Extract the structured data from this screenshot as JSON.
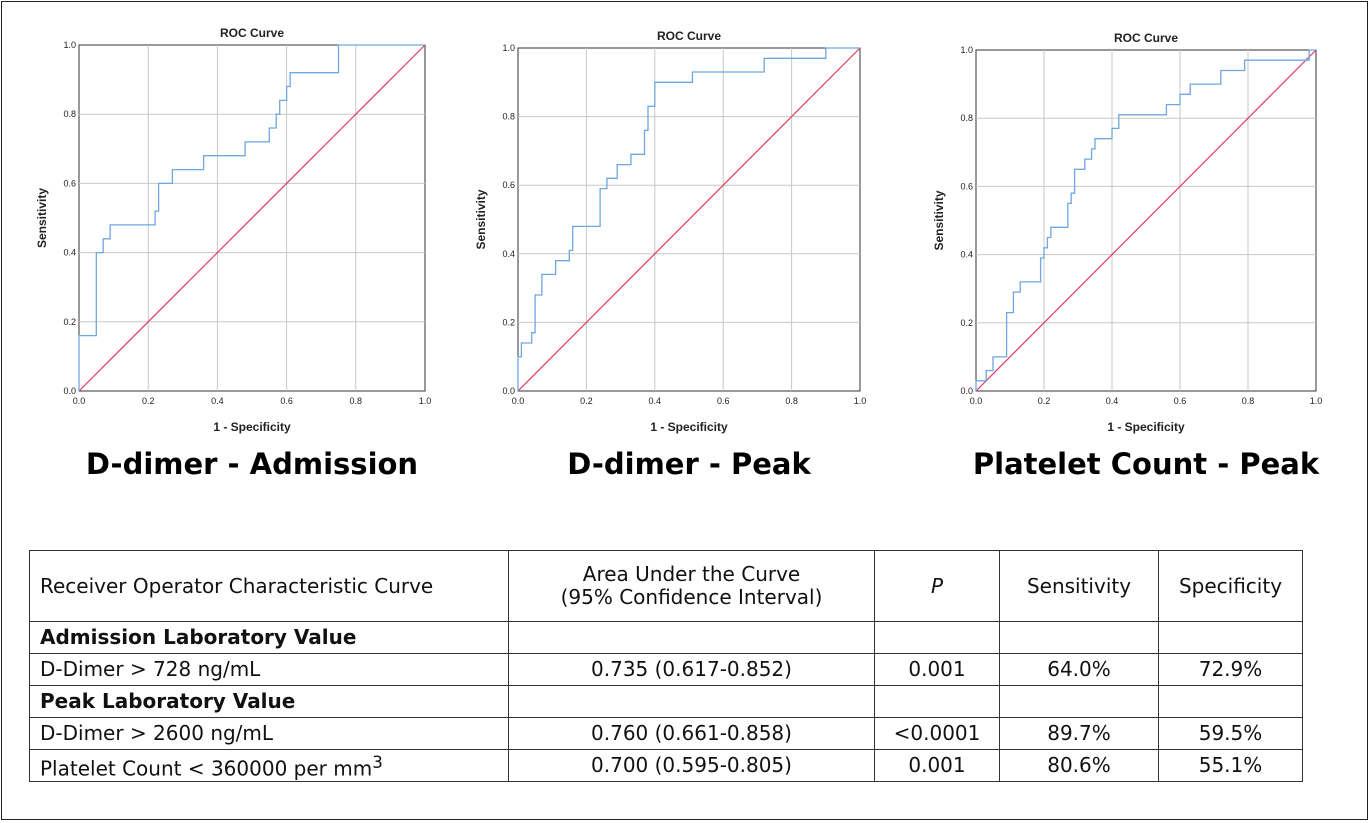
{
  "chart_data": [
    {
      "type": "line",
      "title": "ROC Curve",
      "caption": "D-dimer - Admission",
      "xlabel": "1 - Specificity",
      "ylabel": "Sensitivity",
      "xlim": [
        0,
        1
      ],
      "ylim": [
        0,
        1
      ],
      "xticks": [
        "0.0",
        "0.2",
        "0.4",
        "0.6",
        "0.8",
        "1.0"
      ],
      "yticks": [
        "0.0",
        "0.2",
        "0.4",
        "0.6",
        "0.8",
        "1.0"
      ],
      "grid": true,
      "line_color": "#6fa7e0",
      "ref_color": "#e03b5e",
      "roc": [
        [
          0,
          0
        ],
        [
          0,
          0.16
        ],
        [
          0.05,
          0.16
        ],
        [
          0.05,
          0.4
        ],
        [
          0.07,
          0.4
        ],
        [
          0.07,
          0.44
        ],
        [
          0.09,
          0.44
        ],
        [
          0.09,
          0.48
        ],
        [
          0.22,
          0.48
        ],
        [
          0.22,
          0.52
        ],
        [
          0.23,
          0.52
        ],
        [
          0.23,
          0.6
        ],
        [
          0.27,
          0.6
        ],
        [
          0.27,
          0.64
        ],
        [
          0.36,
          0.64
        ],
        [
          0.36,
          0.68
        ],
        [
          0.48,
          0.68
        ],
        [
          0.48,
          0.72
        ],
        [
          0.55,
          0.72
        ],
        [
          0.55,
          0.76
        ],
        [
          0.57,
          0.76
        ],
        [
          0.57,
          0.8
        ],
        [
          0.58,
          0.8
        ],
        [
          0.58,
          0.84
        ],
        [
          0.6,
          0.84
        ],
        [
          0.6,
          0.88
        ],
        [
          0.61,
          0.88
        ],
        [
          0.61,
          0.92
        ],
        [
          0.75,
          0.92
        ],
        [
          0.75,
          1.0
        ],
        [
          1.0,
          1.0
        ]
      ],
      "reference": [
        [
          0,
          0
        ],
        [
          1,
          1
        ]
      ]
    },
    {
      "type": "line",
      "title": "ROC Curve",
      "caption": "D-dimer - Peak",
      "xlabel": "1 - Specificity",
      "ylabel": "Sensitivity",
      "xlim": [
        0,
        1
      ],
      "ylim": [
        0,
        1
      ],
      "xticks": [
        "0.0",
        "0.2",
        "0.4",
        "0.6",
        "0.8",
        "1.0"
      ],
      "yticks": [
        "0.0",
        "0.2",
        "0.4",
        "0.6",
        "0.8",
        "1.0"
      ],
      "grid": true,
      "line_color": "#6fa7e0",
      "ref_color": "#e03b5e",
      "roc": [
        [
          0,
          0
        ],
        [
          0,
          0.1
        ],
        [
          0.01,
          0.1
        ],
        [
          0.01,
          0.14
        ],
        [
          0.04,
          0.14
        ],
        [
          0.04,
          0.17
        ],
        [
          0.05,
          0.17
        ],
        [
          0.05,
          0.28
        ],
        [
          0.07,
          0.28
        ],
        [
          0.07,
          0.34
        ],
        [
          0.11,
          0.34
        ],
        [
          0.11,
          0.38
        ],
        [
          0.15,
          0.38
        ],
        [
          0.15,
          0.41
        ],
        [
          0.16,
          0.41
        ],
        [
          0.16,
          0.48
        ],
        [
          0.24,
          0.48
        ],
        [
          0.24,
          0.59
        ],
        [
          0.26,
          0.59
        ],
        [
          0.26,
          0.62
        ],
        [
          0.29,
          0.62
        ],
        [
          0.29,
          0.66
        ],
        [
          0.33,
          0.66
        ],
        [
          0.33,
          0.69
        ],
        [
          0.37,
          0.69
        ],
        [
          0.37,
          0.76
        ],
        [
          0.38,
          0.76
        ],
        [
          0.38,
          0.83
        ],
        [
          0.4,
          0.83
        ],
        [
          0.4,
          0.9
        ],
        [
          0.51,
          0.9
        ],
        [
          0.51,
          0.93
        ],
        [
          0.72,
          0.93
        ],
        [
          0.72,
          0.97
        ],
        [
          0.9,
          0.97
        ],
        [
          0.9,
          1.0
        ],
        [
          1.0,
          1.0
        ]
      ],
      "reference": [
        [
          0,
          0
        ],
        [
          1,
          1
        ]
      ]
    },
    {
      "type": "line",
      "title": "ROC Curve",
      "caption": "Platelet Count - Peak",
      "xlabel": "1 - Specificity",
      "ylabel": "Sensitivity",
      "xlim": [
        0,
        1
      ],
      "ylim": [
        0,
        1
      ],
      "xticks": [
        "0.0",
        "0.2",
        "0.4",
        "0.6",
        "0.8",
        "1.0"
      ],
      "yticks": [
        "0.0",
        "0.2",
        "0.4",
        "0.6",
        "0.8",
        "1.0"
      ],
      "grid": true,
      "line_color": "#6fa7e0",
      "ref_color": "#e03b5e",
      "roc": [
        [
          0,
          0
        ],
        [
          0,
          0.03
        ],
        [
          0.03,
          0.03
        ],
        [
          0.03,
          0.06
        ],
        [
          0.05,
          0.06
        ],
        [
          0.05,
          0.1
        ],
        [
          0.09,
          0.1
        ],
        [
          0.09,
          0.23
        ],
        [
          0.11,
          0.23
        ],
        [
          0.11,
          0.29
        ],
        [
          0.13,
          0.29
        ],
        [
          0.13,
          0.32
        ],
        [
          0.19,
          0.32
        ],
        [
          0.19,
          0.39
        ],
        [
          0.2,
          0.39
        ],
        [
          0.2,
          0.42
        ],
        [
          0.21,
          0.42
        ],
        [
          0.21,
          0.45
        ],
        [
          0.22,
          0.45
        ],
        [
          0.22,
          0.48
        ],
        [
          0.27,
          0.48
        ],
        [
          0.27,
          0.55
        ],
        [
          0.28,
          0.55
        ],
        [
          0.28,
          0.58
        ],
        [
          0.29,
          0.58
        ],
        [
          0.29,
          0.65
        ],
        [
          0.32,
          0.65
        ],
        [
          0.32,
          0.68
        ],
        [
          0.34,
          0.68
        ],
        [
          0.34,
          0.71
        ],
        [
          0.35,
          0.71
        ],
        [
          0.35,
          0.74
        ],
        [
          0.4,
          0.74
        ],
        [
          0.4,
          0.77
        ],
        [
          0.42,
          0.77
        ],
        [
          0.42,
          0.81
        ],
        [
          0.56,
          0.81
        ],
        [
          0.56,
          0.84
        ],
        [
          0.6,
          0.84
        ],
        [
          0.6,
          0.87
        ],
        [
          0.63,
          0.87
        ],
        [
          0.63,
          0.9
        ],
        [
          0.72,
          0.9
        ],
        [
          0.72,
          0.94
        ],
        [
          0.79,
          0.94
        ],
        [
          0.79,
          0.97
        ],
        [
          0.98,
          0.97
        ],
        [
          0.98,
          1.0
        ],
        [
          1.0,
          1.0
        ]
      ],
      "reference": [
        [
          0,
          0
        ],
        [
          1,
          1
        ]
      ]
    }
  ],
  "table": {
    "header": [
      "Receiver Operator Characteristic Curve",
      "Area Under the Curve",
      "(95% Confidence Interval)",
      "P",
      "Sensitivity",
      "Specificity"
    ],
    "section_admission": "Admission Laboratory Value",
    "row_admission_ddimer": [
      "D-Dimer > 728 ng/mL",
      "0.735 (0.617-0.852)",
      "0.001",
      "64.0%",
      "72.9%"
    ],
    "section_peak": "Peak Laboratory Value",
    "row_peak_ddimer": [
      "D-Dimer > 2600 ng/mL",
      "0.760 (0.661-0.858)",
      "<0.0001",
      "89.7%",
      "59.5%"
    ],
    "row_peak_platelet_label": "Platelet Count < 360000 per mm",
    "row_peak_platelet_sup": "3",
    "row_peak_platelet": [
      "0.700 (0.595-0.805)",
      "0.001",
      "80.6%",
      "55.1%"
    ]
  }
}
